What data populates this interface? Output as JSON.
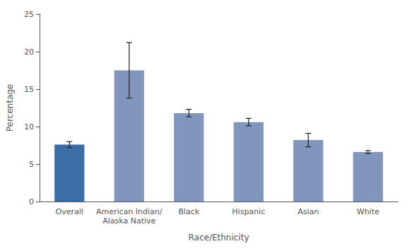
{
  "chart_data": {
    "type": "bar",
    "categories": [
      "Overall",
      "American Indian/\nAlaska Native",
      "Black",
      "Hispanic",
      "Asian",
      "White"
    ],
    "values": [
      7.6,
      17.5,
      11.8,
      10.6,
      8.2,
      6.6
    ],
    "errors_lower": [
      0.4,
      3.7,
      0.5,
      0.5,
      0.9,
      0.2
    ],
    "errors_upper": [
      0.4,
      3.7,
      0.5,
      0.5,
      0.9,
      0.2
    ],
    "colors": [
      "#3A6EA5",
      "#8096BC",
      "#8096BC",
      "#8096BC",
      "#8096BC",
      "#8096BC"
    ],
    "xlabel": "Race/Ethnicity",
    "ylabel": "Percentage",
    "ylim": [
      0,
      25
    ],
    "yticks": [
      0,
      5,
      10,
      15,
      20,
      25
    ],
    "grid": false
  }
}
